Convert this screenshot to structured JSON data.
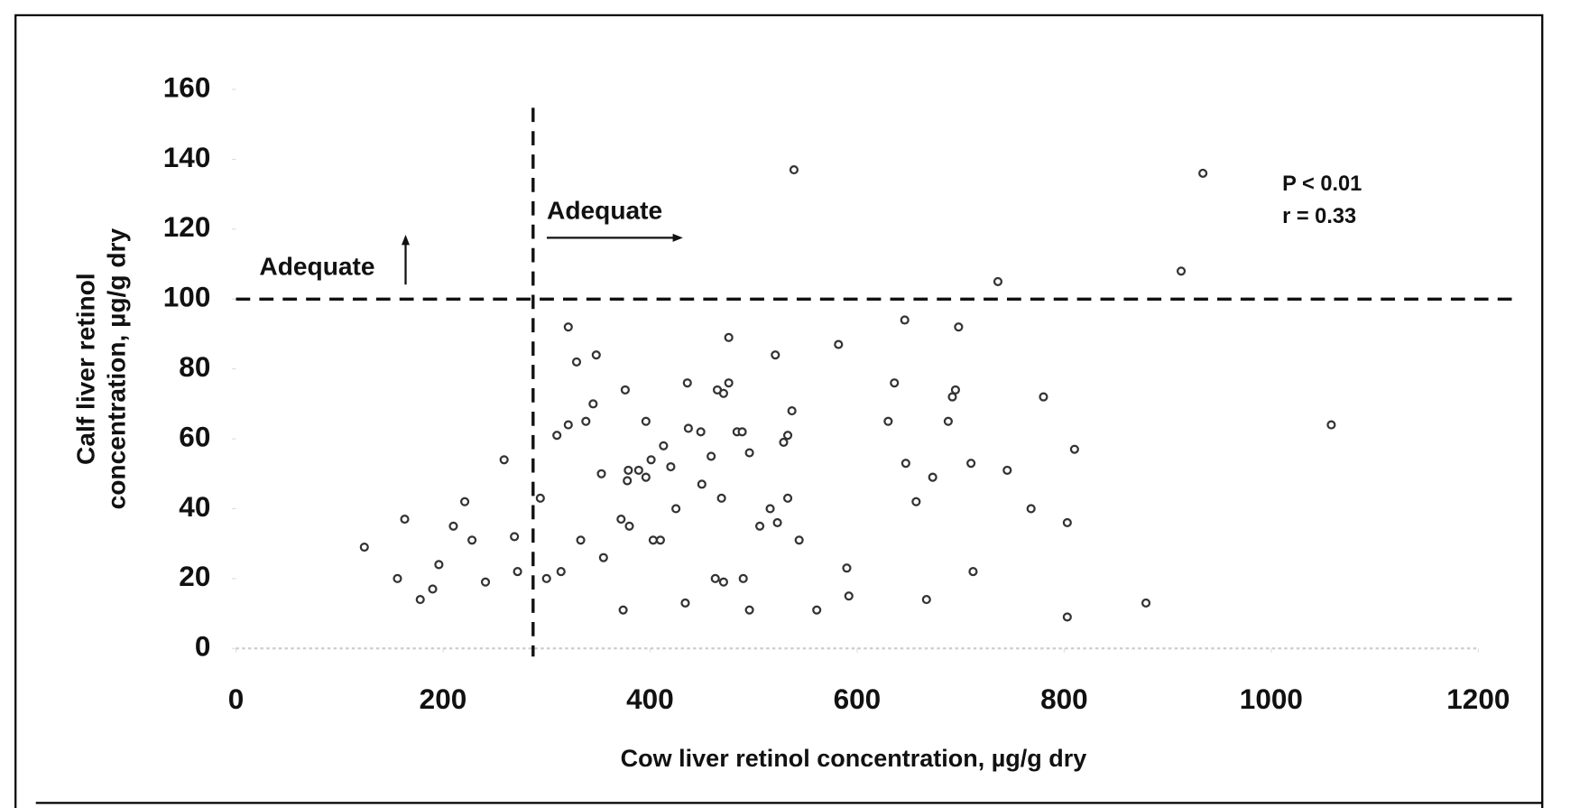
{
  "chart_data": {
    "type": "scatter",
    "xlabel": "Cow liver retinol concentration, µg/g dry",
    "ylabel": [
      "Calf liver retinol",
      "concentration, µg/g dry"
    ],
    "xlim": [
      0,
      1200
    ],
    "ylim": [
      0,
      160
    ],
    "xticks": [
      0,
      200,
      400,
      600,
      800,
      1000,
      1200
    ],
    "yticks": [
      0,
      20,
      40,
      60,
      80,
      100,
      120,
      140,
      160
    ],
    "grid": false,
    "color": "#333333",
    "x": [
      124,
      156,
      163,
      178,
      190,
      196,
      210,
      221,
      228,
      241,
      259,
      269,
      272,
      294,
      300,
      314,
      310,
      321,
      321,
      329,
      333,
      338,
      345,
      348,
      353,
      355,
      372,
      374,
      376,
      379,
      380,
      378,
      389,
      396,
      396,
      401,
      403,
      410,
      413,
      420,
      425,
      434,
      436,
      437,
      449,
      450,
      459,
      463,
      465,
      469,
      471,
      471,
      476,
      476,
      484,
      489,
      490,
      496,
      496,
      506,
      516,
      521,
      523,
      529,
      533,
      533,
      537,
      544,
      539,
      561,
      582,
      590,
      592,
      630,
      636,
      646,
      647,
      657,
      667,
      673,
      688,
      692,
      695,
      698,
      710,
      712,
      736,
      745,
      768,
      780,
      803,
      803,
      810,
      879,
      913,
      934,
      1058
    ],
    "values": [
      29,
      20,
      37,
      14,
      17,
      24,
      35,
      42,
      31,
      19,
      54,
      32,
      22,
      43,
      20,
      22,
      61,
      92,
      64,
      82,
      31,
      65,
      70,
      84,
      50,
      26,
      37,
      11,
      74,
      51,
      35,
      48,
      51,
      49,
      65,
      54,
      31,
      31,
      58,
      52,
      40,
      13,
      76,
      63,
      62,
      47,
      55,
      20,
      74,
      43,
      73,
      19,
      76,
      89,
      62,
      62,
      20,
      11,
      56,
      35,
      40,
      84,
      36,
      59,
      61,
      43,
      68,
      31,
      137,
      11,
      87,
      23,
      15,
      65,
      76,
      94,
      53,
      42,
      14,
      49,
      65,
      72,
      74,
      92,
      53,
      22,
      105,
      51,
      40,
      72,
      9,
      36,
      57,
      13,
      108,
      136,
      64
    ],
    "reference_lines": {
      "x": 287,
      "y": 100
    },
    "annotations": [
      "Adequate",
      "Adequate",
      "P < 0.01",
      "r = 0.33"
    ]
  }
}
